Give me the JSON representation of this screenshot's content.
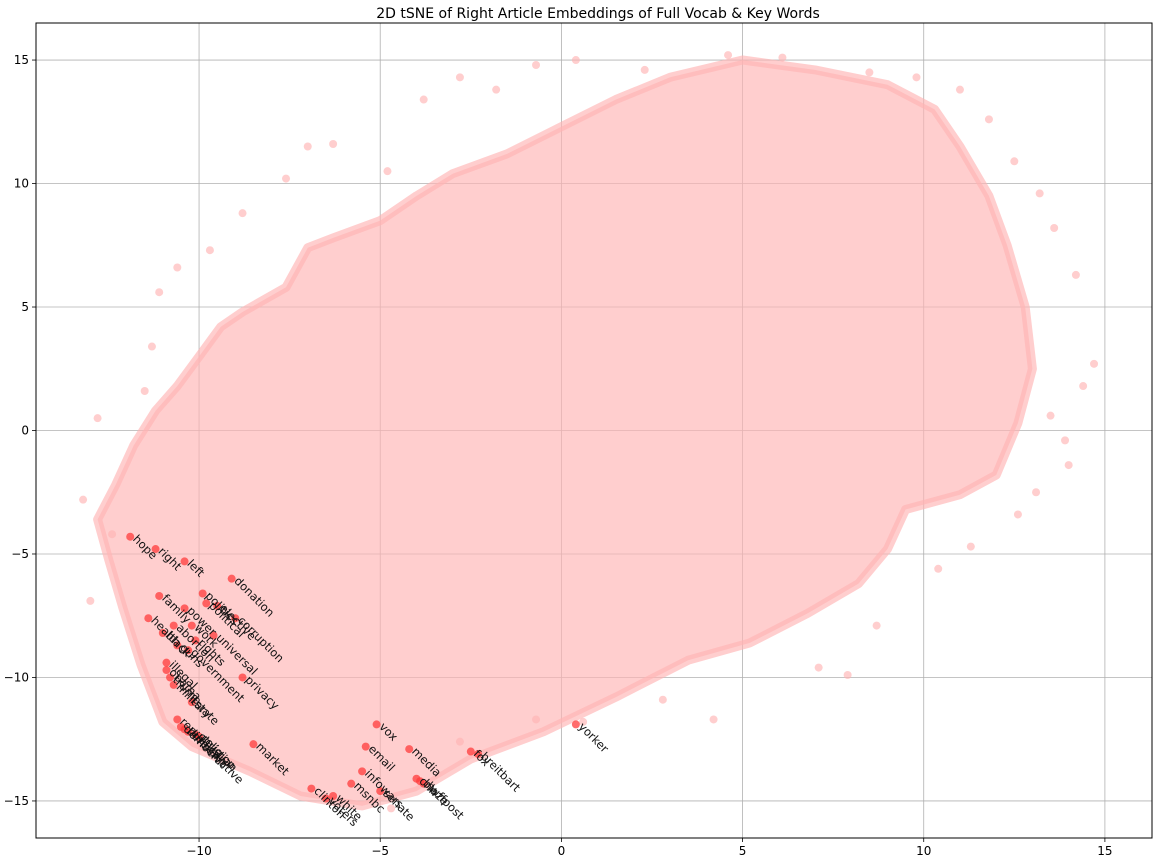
{
  "chart_data": {
    "type": "scatter",
    "title": "2D tSNE of Right Article Embeddings of Full Vocab & Key Words",
    "xlabel": "",
    "ylabel": "",
    "xlim": [
      -14.5,
      16.3
    ],
    "ylim": [
      -16.5,
      16.5
    ],
    "x_ticks": [
      -10,
      -5,
      0,
      5,
      10,
      15
    ],
    "x_tick_labels": [
      "−10",
      "−5",
      "0",
      "5",
      "10",
      "15"
    ],
    "y_ticks": [
      15,
      10,
      5,
      0,
      -5,
      -10,
      -15
    ],
    "y_tick_labels": [
      "15",
      "10",
      "5",
      "0",
      "−5",
      "−10",
      "−15"
    ],
    "grid": true,
    "colors": {
      "vocab": "#ffb3b3",
      "key_words": "#ff3b3b"
    },
    "vocab_cloud_outline": [
      [
        -12.8,
        -3.6
      ],
      [
        -12.3,
        -2.2
      ],
      [
        -11.8,
        -0.6
      ],
      [
        -11.2,
        0.8
      ],
      [
        -10.6,
        1.8
      ],
      [
        -10.0,
        3.0
      ],
      [
        -9.4,
        4.2
      ],
      [
        -8.8,
        4.8
      ],
      [
        -7.6,
        5.8
      ],
      [
        -7.0,
        7.4
      ],
      [
        -6.3,
        7.8
      ],
      [
        -5.0,
        8.5
      ],
      [
        -4.0,
        9.5
      ],
      [
        -3.0,
        10.4
      ],
      [
        -1.5,
        11.2
      ],
      [
        0.0,
        12.3
      ],
      [
        1.5,
        13.4
      ],
      [
        3.0,
        14.3
      ],
      [
        5.0,
        15.0
      ],
      [
        7.0,
        14.6
      ],
      [
        9.0,
        14.0
      ],
      [
        10.3,
        13.0
      ],
      [
        11.0,
        11.5
      ],
      [
        11.8,
        9.5
      ],
      [
        12.3,
        7.5
      ],
      [
        12.8,
        5.0
      ],
      [
        13.0,
        2.5
      ],
      [
        12.6,
        0.3
      ],
      [
        12.0,
        -1.8
      ],
      [
        11.0,
        -2.6
      ],
      [
        9.5,
        -3.2
      ],
      [
        9.0,
        -4.8
      ],
      [
        8.2,
        -6.2
      ],
      [
        6.8,
        -7.4
      ],
      [
        5.2,
        -8.6
      ],
      [
        3.5,
        -9.3
      ],
      [
        1.5,
        -10.8
      ],
      [
        -0.5,
        -12.2
      ],
      [
        -2.5,
        -13.3
      ],
      [
        -4.0,
        -14.6
      ],
      [
        -5.5,
        -15.2
      ],
      [
        -7.2,
        -14.8
      ],
      [
        -8.6,
        -13.8
      ],
      [
        -10.2,
        -12.8
      ],
      [
        -11.0,
        -11.8
      ],
      [
        -11.6,
        -9.5
      ],
      [
        -12.1,
        -7.2
      ],
      [
        -12.5,
        -5.2
      ]
    ],
    "vocab_outliers": [
      [
        -10.6,
        6.6
      ],
      [
        -11.1,
        5.6
      ],
      [
        -12.8,
        0.5
      ],
      [
        -11.3,
        3.4
      ],
      [
        -9.7,
        7.3
      ],
      [
        -7.6,
        10.2
      ],
      [
        -7.0,
        11.5
      ],
      [
        -6.3,
        11.6
      ],
      [
        -8.8,
        8.8
      ],
      [
        -4.8,
        10.5
      ],
      [
        -3.8,
        13.4
      ],
      [
        -2.8,
        14.3
      ],
      [
        -1.8,
        13.8
      ],
      [
        -0.7,
        14.8
      ],
      [
        0.4,
        15.0
      ],
      [
        2.3,
        14.6
      ],
      [
        4.6,
        15.2
      ],
      [
        6.1,
        15.1
      ],
      [
        8.5,
        14.5
      ],
      [
        9.8,
        14.3
      ],
      [
        11.0,
        13.8
      ],
      [
        11.8,
        12.6
      ],
      [
        12.5,
        10.9
      ],
      [
        13.2,
        9.6
      ],
      [
        13.6,
        8.2
      ],
      [
        14.2,
        6.3
      ],
      [
        14.7,
        2.7
      ],
      [
        14.4,
        1.8
      ],
      [
        13.5,
        0.6
      ],
      [
        13.9,
        -0.4
      ],
      [
        14.0,
        -1.4
      ],
      [
        13.1,
        -2.5
      ],
      [
        12.6,
        -3.4
      ],
      [
        11.3,
        -4.7
      ],
      [
        10.4,
        -5.6
      ],
      [
        8.7,
        -7.9
      ],
      [
        7.1,
        -9.6
      ],
      [
        7.9,
        -9.9
      ],
      [
        4.2,
        -11.7
      ],
      [
        2.8,
        -10.9
      ],
      [
        0.6,
        -11.8
      ],
      [
        -0.7,
        -11.7
      ],
      [
        -2.8,
        -12.6
      ],
      [
        -4.7,
        -15.3
      ],
      [
        -13.0,
        -6.9
      ],
      [
        -12.4,
        -4.2
      ],
      [
        -13.2,
        -2.8
      ],
      [
        -11.5,
        1.6
      ]
    ],
    "key_words": [
      {
        "word": "hope",
        "x": -11.9,
        "y": -4.3
      },
      {
        "word": "right",
        "x": -11.2,
        "y": -4.8
      },
      {
        "word": "left",
        "x": -10.4,
        "y": -5.3
      },
      {
        "word": "donation",
        "x": -9.1,
        "y": -6.0
      },
      {
        "word": "politics",
        "x": -9.9,
        "y": -6.6
      },
      {
        "word": "political",
        "x": -9.8,
        "y": -7.0
      },
      {
        "word": "elective",
        "x": -9.5,
        "y": -7.1
      },
      {
        "word": "family",
        "x": -11.1,
        "y": -6.7
      },
      {
        "word": "power",
        "x": -10.4,
        "y": -7.2
      },
      {
        "word": "corruption",
        "x": -9.0,
        "y": -7.6
      },
      {
        "word": "health",
        "x": -11.4,
        "y": -7.6
      },
      {
        "word": "work",
        "x": -10.2,
        "y": -7.9
      },
      {
        "word": "abortion",
        "x": -10.7,
        "y": -7.9
      },
      {
        "word": "black",
        "x": -11.0,
        "y": -8.2
      },
      {
        "word": "universal",
        "x": -9.6,
        "y": -8.3
      },
      {
        "word": "rights",
        "x": -10.1,
        "y": -8.5
      },
      {
        "word": "guns",
        "x": -10.6,
        "y": -8.7
      },
      {
        "word": "government",
        "x": -10.3,
        "y": -8.9
      },
      {
        "word": "illegal",
        "x": -10.9,
        "y": -9.4
      },
      {
        "word": "obama",
        "x": -10.9,
        "y": -9.7
      },
      {
        "word": "trump",
        "x": -10.8,
        "y": -10.0
      },
      {
        "word": "military",
        "x": -10.7,
        "y": -10.3
      },
      {
        "word": "privacy",
        "x": -8.8,
        "y": -10.0
      },
      {
        "word": "state",
        "x": -10.2,
        "y": -11.0
      },
      {
        "word": "republican",
        "x": -10.6,
        "y": -11.7
      },
      {
        "word": "democrat",
        "x": -10.5,
        "y": -12.0
      },
      {
        "word": "conservative",
        "x": -10.4,
        "y": -12.1
      },
      {
        "word": "liberal",
        "x": -10.3,
        "y": -12.2
      },
      {
        "word": "christian",
        "x": -10.1,
        "y": -12.3
      },
      {
        "word": "religion",
        "x": -10.0,
        "y": -12.4
      },
      {
        "word": "market",
        "x": -8.5,
        "y": -12.7
      },
      {
        "word": "vox",
        "x": -5.1,
        "y": -11.9
      },
      {
        "word": "email",
        "x": -5.4,
        "y": -12.8
      },
      {
        "word": "media",
        "x": -4.2,
        "y": -12.9
      },
      {
        "word": "infowars",
        "x": -5.5,
        "y": -13.8
      },
      {
        "word": "msnbc",
        "x": -5.8,
        "y": -14.3
      },
      {
        "word": "senate",
        "x": -5.0,
        "y": -14.6
      },
      {
        "word": "cnn",
        "x": -4.0,
        "y": -14.1
      },
      {
        "word": "huffpost",
        "x": -3.8,
        "y": -14.3
      },
      {
        "word": "blaze",
        "x": -3.9,
        "y": -14.2
      },
      {
        "word": "fox",
        "x": -2.5,
        "y": -13.0
      },
      {
        "word": "breitbart",
        "x": -2.3,
        "y": -13.1
      },
      {
        "word": "yorker",
        "x": 0.4,
        "y": -11.9
      },
      {
        "word": "clinton",
        "x": -6.9,
        "y": -14.5
      },
      {
        "word": "white",
        "x": -6.3,
        "y": -14.8
      },
      {
        "word": "voters",
        "x": -6.5,
        "y": -14.9
      }
    ]
  }
}
